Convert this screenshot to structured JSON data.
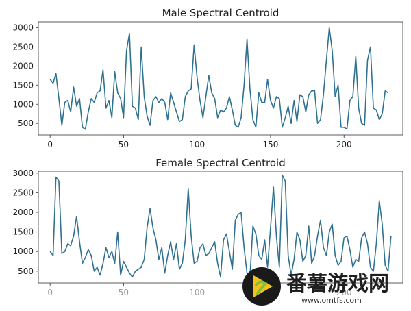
{
  "chart_data": [
    {
      "type": "line",
      "title": "Male Spectral Centroid",
      "xlabel": "",
      "ylabel": "",
      "xlim": [
        -8,
        240
      ],
      "ylim": [
        200,
        3150
      ],
      "xticks": [
        0,
        50,
        100,
        150,
        200
      ],
      "yticks": [
        500,
        1000,
        1500,
        2000,
        2500,
        3000
      ],
      "color": "#2e7191",
      "series": [
        {
          "x": [
            0,
            2,
            4,
            6,
            8,
            10,
            12,
            14,
            16,
            18,
            20,
            22,
            24,
            26,
            28,
            30,
            32,
            34,
            36,
            38,
            40,
            42,
            44,
            46,
            48,
            50,
            52,
            54,
            56,
            58,
            60,
            62,
            64,
            66,
            68,
            70,
            72,
            74,
            76,
            78,
            80,
            82,
            84,
            86,
            88,
            90,
            92,
            94,
            96,
            98,
            100,
            102,
            104,
            106,
            108,
            110,
            112,
            114,
            116,
            118,
            120,
            122,
            124,
            126,
            128,
            130,
            132,
            134,
            136,
            138,
            140,
            142,
            144,
            146,
            148,
            150,
            152,
            154,
            156,
            158,
            160,
            162,
            164,
            166,
            168,
            170,
            172,
            174,
            176,
            178,
            180,
            182,
            184,
            186,
            188,
            190,
            192,
            194,
            196,
            198,
            200,
            202,
            204,
            206,
            208,
            210,
            212,
            214,
            216,
            218,
            220,
            222,
            224,
            226,
            228,
            230
          ],
          "values": [
            1650,
            1550,
            1800,
            1150,
            450,
            1050,
            1100,
            800,
            1450,
            950,
            1150,
            400,
            350,
            800,
            1150,
            1050,
            1300,
            1350,
            1900,
            900,
            1100,
            650,
            1850,
            1300,
            1150,
            650,
            2400,
            2850,
            950,
            900,
            600,
            2500,
            1200,
            700,
            450,
            1100,
            1200,
            1050,
            1150,
            1050,
            600,
            1300,
            1050,
            800,
            550,
            600,
            1200,
            1350,
            1400,
            2550,
            1700,
            1100,
            650,
            1200,
            1750,
            1300,
            1150,
            650,
            850,
            800,
            900,
            1200,
            850,
            450,
            400,
            650,
            1500,
            2700,
            1400,
            600,
            400,
            1300,
            1050,
            1050,
            1650,
            1100,
            900,
            1200,
            1150,
            400,
            650,
            950,
            500,
            1100,
            550,
            1250,
            1200,
            800,
            1250,
            1350,
            1350,
            500,
            600,
            1250,
            2150,
            3000,
            2400,
            1200,
            1500,
            400,
            400,
            350,
            1100,
            1200,
            2250,
            900,
            500,
            450,
            2150,
            2500,
            900,
            850,
            600,
            750,
            1350,
            1300
          ]
        }
      ]
    },
    {
      "type": "line",
      "title": "Female Spectral Centroid",
      "xlabel": "",
      "ylabel": "",
      "xlim": [
        -8,
        240
      ],
      "ylim": [
        200,
        3050
      ],
      "xticks": [
        0,
        50,
        100,
        150,
        200
      ],
      "yticks": [
        500,
        1000,
        1500,
        2000,
        2500,
        3000
      ],
      "color": "#2e7191",
      "series": [
        {
          "x": [
            0,
            2,
            4,
            6,
            8,
            10,
            12,
            14,
            16,
            18,
            20,
            22,
            24,
            26,
            28,
            30,
            32,
            34,
            36,
            38,
            40,
            42,
            44,
            46,
            48,
            50,
            52,
            54,
            56,
            58,
            60,
            62,
            64,
            66,
            68,
            70,
            72,
            74,
            76,
            78,
            80,
            82,
            84,
            86,
            88,
            90,
            92,
            94,
            96,
            98,
            100,
            102,
            104,
            106,
            108,
            110,
            112,
            114,
            116,
            118,
            120,
            122,
            124,
            126,
            128,
            130,
            132,
            134,
            136,
            138,
            140,
            142,
            144,
            146,
            148,
            150,
            152,
            154,
            156,
            158,
            160,
            162,
            164,
            166,
            168,
            170,
            172,
            174,
            176,
            178,
            180,
            182,
            184,
            186,
            188,
            190,
            192,
            194,
            196,
            198,
            200,
            202,
            204,
            206,
            208,
            210,
            212,
            214,
            216,
            218,
            220,
            222,
            224,
            226,
            228,
            230,
            232
          ],
          "values": [
            1000,
            900,
            2900,
            2800,
            950,
            1000,
            1200,
            1150,
            1400,
            1900,
            1250,
            700,
            850,
            1050,
            900,
            500,
            600,
            400,
            700,
            1100,
            850,
            1000,
            700,
            1500,
            400,
            750,
            600,
            450,
            350,
            500,
            550,
            600,
            800,
            1600,
            2100,
            1600,
            1300,
            800,
            1100,
            450,
            900,
            1250,
            800,
            1200,
            550,
            700,
            1300,
            2600,
            1400,
            700,
            750,
            1100,
            1200,
            900,
            950,
            1100,
            1250,
            700,
            350,
            1300,
            1450,
            1000,
            550,
            1800,
            1950,
            2000,
            1100,
            450,
            350,
            1650,
            1450,
            900,
            800,
            1300,
            600,
            1600,
            2650,
            1400,
            600,
            2950,
            2800,
            900,
            400,
            800,
            1500,
            1300,
            750,
            900,
            1650,
            700,
            900,
            1400,
            1800,
            1100,
            900,
            1500,
            1700,
            900,
            650,
            750,
            1350,
            1400,
            1050,
            600,
            800,
            750,
            1350,
            1500,
            1200,
            600,
            500,
            1200,
            2300,
            1700,
            650,
            500,
            1400
          ]
        }
      ]
    }
  ],
  "watermark": {
    "name": "番薯游戏网",
    "url": "www.omtfs.com"
  }
}
